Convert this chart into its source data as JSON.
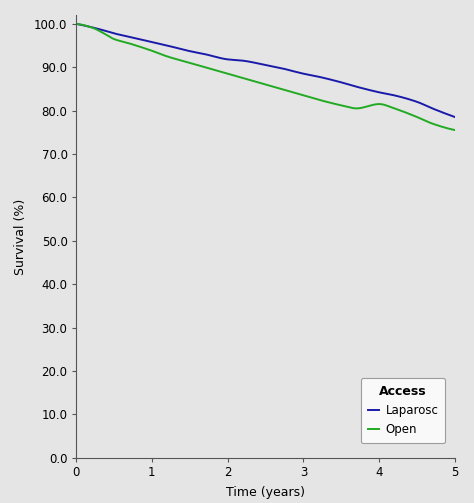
{
  "title": "",
  "xlabel": "Time (years)",
  "ylabel": "Survival (%)",
  "xlim": [
    0,
    5
  ],
  "ylim": [
    0.0,
    102.0
  ],
  "yticks": [
    0.0,
    10.0,
    20.0,
    30.0,
    40.0,
    50.0,
    60.0,
    70.0,
    80.0,
    90.0,
    100.0
  ],
  "xticks": [
    0,
    1,
    2,
    3,
    4,
    5
  ],
  "background_color": "#e5e5e5",
  "laparosc_color": "#1a1aaa",
  "open_color": "#22aa22",
  "lap_key_x": [
    0.0,
    0.3,
    0.5,
    0.7,
    1.0,
    1.2,
    1.5,
    1.7,
    2.0,
    2.2,
    2.5,
    2.7,
    3.0,
    3.2,
    3.5,
    3.7,
    4.0,
    4.2,
    4.5,
    4.7,
    5.0
  ],
  "lap_key_y": [
    100.0,
    98.8,
    97.8,
    97.0,
    95.8,
    95.0,
    93.7,
    93.0,
    91.8,
    91.5,
    90.5,
    89.8,
    88.5,
    87.8,
    86.5,
    85.5,
    84.2,
    83.5,
    82.0,
    80.5,
    78.5
  ],
  "open_key_x": [
    0.0,
    0.2,
    0.4,
    0.5,
    0.7,
    1.0,
    1.2,
    1.5,
    1.7,
    2.0,
    2.2,
    2.5,
    2.7,
    3.0,
    3.2,
    3.5,
    3.7,
    4.0,
    4.2,
    4.5,
    4.7,
    5.0
  ],
  "open_key_y": [
    100.0,
    99.2,
    97.5,
    96.5,
    95.5,
    93.8,
    92.5,
    91.0,
    90.0,
    88.5,
    87.5,
    86.0,
    85.0,
    83.5,
    82.5,
    81.2,
    80.5,
    81.5,
    80.5,
    78.5,
    77.0,
    75.5
  ],
  "legend_title": "Access",
  "legend_laparosc": "Laparosc",
  "legend_open": "Open",
  "linewidth": 1.4
}
